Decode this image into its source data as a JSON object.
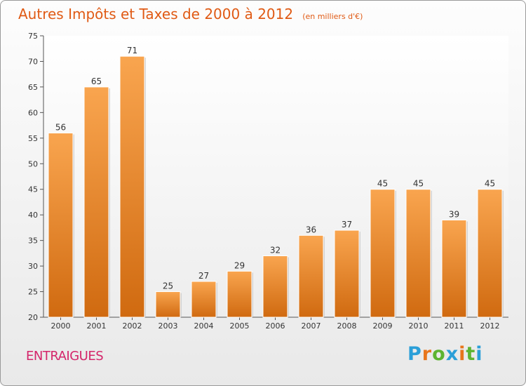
{
  "header": {
    "title": "Autres Impôts et Taxes de 2000 à 2012",
    "subtitle": "(en milliers d'€)"
  },
  "footer": {
    "commune": "ENTRAIGUES",
    "logo": {
      "text": "Proxiti",
      "colors": [
        "#2b9fd8",
        "#e8761c",
        "#5db431",
        "#2b9fd8",
        "#e8761c",
        "#5db431",
        "#2b9fd8"
      ]
    }
  },
  "colors": {
    "bar_top": "#f9a54f",
    "bar_bottom": "#d06a10",
    "title": "#e05a14",
    "commune": "#d4256a"
  },
  "chart_data": {
    "type": "bar",
    "categories": [
      "2000",
      "2001",
      "2002",
      "2003",
      "2004",
      "2005",
      "2006",
      "2007",
      "2008",
      "2009",
      "2010",
      "2011",
      "2012"
    ],
    "values": [
      56,
      65,
      71,
      25,
      27,
      29,
      32,
      36,
      37,
      45,
      45,
      39,
      45
    ],
    "ylim": [
      20,
      75
    ],
    "yticks": [
      20,
      25,
      30,
      35,
      40,
      45,
      50,
      55,
      60,
      65,
      70,
      75
    ],
    "grid": false,
    "data_labels": true
  }
}
